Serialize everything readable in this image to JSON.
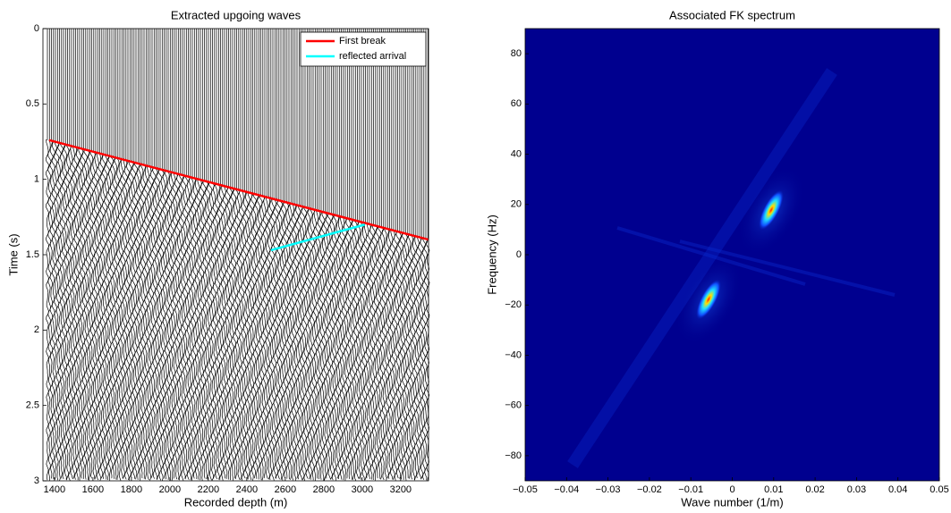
{
  "chart_data": [
    {
      "type": "line",
      "title": "Extracted upgoing waves",
      "x_label": "Recorded depth (m)",
      "y_label": "Time (s)",
      "xlim": [
        1340,
        3345
      ],
      "ylim": [
        3,
        0
      ],
      "xticks": [
        1400,
        1600,
        1800,
        2000,
        2200,
        2400,
        2600,
        2800,
        3000,
        3200
      ],
      "yticks": [
        0,
        0.5,
        1,
        1.5,
        2,
        2.5,
        3
      ],
      "legend": "upper right",
      "series": [
        {
          "name": "First break",
          "color": "#ff0000",
          "x": [
            1372,
            3344
          ],
          "values": [
            0.74,
            1.4
          ]
        },
        {
          "name": "reflected arrival",
          "color": "#00ffff",
          "x": [
            2526,
            3014
          ],
          "values": [
            1.47,
            1.3
          ]
        }
      ]
    },
    {
      "type": "heatmap",
      "title": "Associated FK spectrum",
      "x_label": "Wave number (1/m)",
      "y_label": "Frequency (Hz)",
      "xlim": [
        -0.05,
        0.05
      ],
      "ylim": [
        -90,
        90
      ],
      "xticks": [
        {
          "value": -0.05,
          "label": "−0.05"
        },
        {
          "value": -0.04,
          "label": "−0.04"
        },
        {
          "value": -0.03,
          "label": "−0.03"
        },
        {
          "value": -0.02,
          "label": "−0.02"
        },
        {
          "value": -0.01,
          "label": "−0.01"
        },
        0,
        0.01,
        0.02,
        0.03,
        0.04,
        0.05
      ],
      "yticks": [
        {
          "value": -80,
          "label": "−80"
        },
        {
          "value": -60,
          "label": "−60"
        },
        {
          "value": -40,
          "label": "−40"
        },
        {
          "value": -20,
          "label": "−20"
        },
        0,
        20,
        40,
        60,
        80
      ]
    }
  ]
}
